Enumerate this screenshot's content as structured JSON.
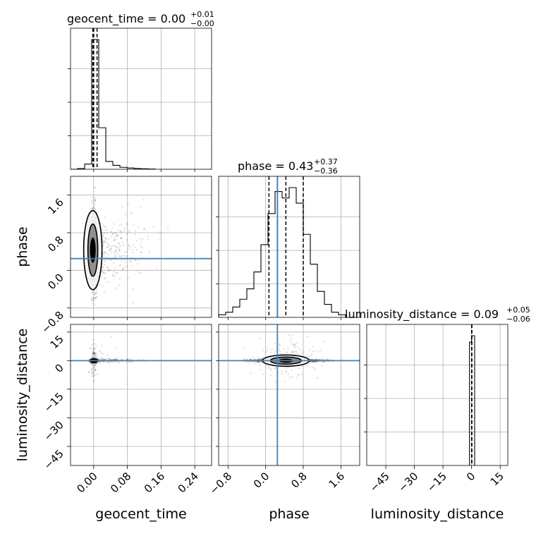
{
  "chart_data": {
    "type": "corner",
    "parameters": [
      {
        "name": "geocent_time",
        "title": {
          "main": "geocent_time = 0.00",
          "upper": "+0.01",
          "lower": "−0.00"
        },
        "range": [
          -0.055,
          0.28
        ],
        "ticks": [
          0.0,
          0.08,
          0.16,
          0.24
        ],
        "tick_labels": [
          "0.00",
          "0.08",
          "0.16",
          "0.24"
        ],
        "quantiles": [
          -0.002,
          0.0,
          0.008
        ],
        "hist_edges": [
          -0.055,
          -0.0383,
          -0.0215,
          -0.0048,
          0.012,
          0.0288,
          0.0455,
          0.0623,
          0.079,
          0.0958,
          0.1125,
          0.1293,
          0.146
        ],
        "hist_counts": [
          0,
          0.005,
          0.04,
          1.0,
          0.32,
          0.06,
          0.03,
          0.015,
          0.01,
          0.006,
          0.004,
          0.002
        ]
      },
      {
        "name": "phase",
        "title": {
          "main": "phase = 0.43",
          "upper": "+0.37",
          "lower": "−0.36"
        },
        "range": [
          -1.0,
          2.0
        ],
        "ticks": [
          -0.8,
          0.0,
          0.8,
          1.6
        ],
        "tick_labels": [
          "−0.8",
          "0.0",
          "0.8",
          "1.6"
        ],
        "truth": 0.25,
        "quantiles": [
          0.07,
          0.43,
          0.8
        ],
        "hist_edges": [
          -1.0,
          -0.85,
          -0.7,
          -0.55,
          -0.4,
          -0.25,
          -0.1,
          0.05,
          0.2,
          0.35,
          0.5,
          0.65,
          0.8,
          0.95,
          1.1,
          1.25,
          1.4,
          1.55,
          1.7
        ],
        "hist_counts": [
          0.02,
          0.04,
          0.08,
          0.14,
          0.22,
          0.35,
          0.56,
          0.8,
          0.97,
          0.92,
          1.0,
          0.88,
          0.64,
          0.41,
          0.2,
          0.1,
          0.04,
          0.02
        ]
      },
      {
        "name": "luminosity_distance",
        "title": {
          "main": "luminosity_distance = 0.09",
          "upper": "+0.05",
          "lower": "−0.06"
        },
        "range": [
          -55.0,
          19.0
        ],
        "ticks": [
          -45,
          -30,
          -15,
          0,
          15
        ],
        "tick_labels": [
          "−45",
          "−30",
          "−15",
          "0",
          "15"
        ],
        "quantiles": [
          0.03,
          0.09,
          0.14
        ],
        "hist_edges": [
          -1.1,
          0.0,
          1.6
        ],
        "hist_counts": [
          0.95,
          1.0
        ]
      }
    ],
    "truths": {
      "phase": 0.25,
      "luminosity_distance": 0.0
    },
    "contour_levels": [
      "39%",
      "86%"
    ],
    "grid": true
  }
}
